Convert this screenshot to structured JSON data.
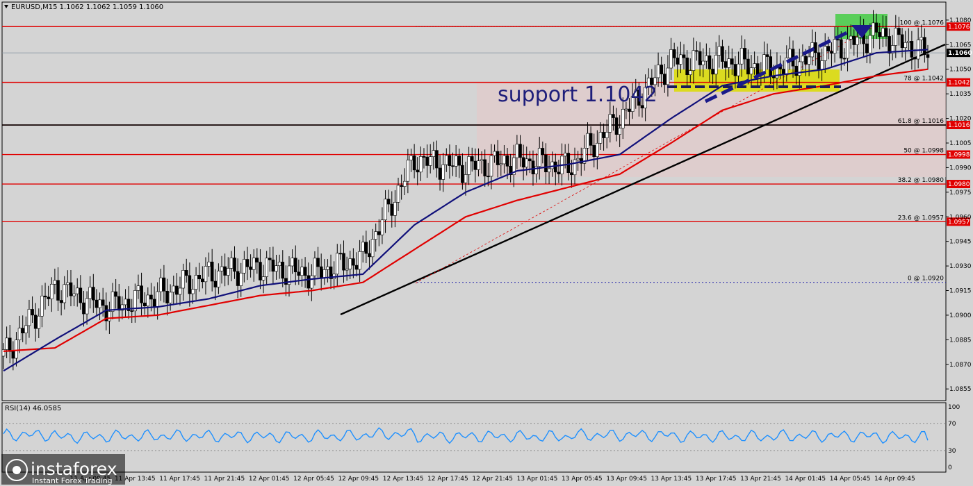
{
  "header": {
    "symbol_info": "EURUSD,M15  1.1062 1.1062 1.1059 1.1060"
  },
  "annotation": {
    "support_text": "support 1.1042"
  },
  "rsi": {
    "label": "RSI(14) 46.0585",
    "levels": [
      "100",
      "70",
      "30",
      "0"
    ]
  },
  "watermark": {
    "brand": "instaforex",
    "tagline": "Instant Forex Trading"
  },
  "price_axis": [
    "1.1080",
    "1.1065",
    "1.1050",
    "1.1035",
    "1.1020",
    "1.1005",
    "1.0990",
    "1.0975",
    "1.0960",
    "1.0945",
    "1.0930",
    "1.0915",
    "1.0900",
    "1.0885",
    "1.0870",
    "1.0855"
  ],
  "time_axis": [
    "11 Apr 09:45",
    "11 Apr 13:45",
    "11 Apr 17:45",
    "11 Apr 21:45",
    "12 Apr 01:45",
    "12 Apr 05:45",
    "12 Apr 09:45",
    "12 Apr 13:45",
    "12 Apr 17:45",
    "12 Apr 21:45",
    "13 Apr 01:45",
    "13 Apr 05:45",
    "13 Apr 09:45",
    "13 Apr 13:45",
    "13 Apr 17:45",
    "13 Apr 21:45",
    "14 Apr 01:45",
    "14 Apr 05:45",
    "14 Apr 09:45"
  ],
  "fib_levels": [
    {
      "ratio": "100 @ 1.1076",
      "price": 1.1076,
      "tag": "1.1076"
    },
    {
      "ratio": "78 @ 1.1042",
      "price": 1.1042,
      "tag": "1.1042"
    },
    {
      "ratio": "61.8 @ 1.1016",
      "price": 1.1016,
      "tag": "1.1016"
    },
    {
      "ratio": "50 @ 1.0998",
      "price": 1.0998,
      "tag": "1.0998"
    },
    {
      "ratio": "38.2 @ 1.0980",
      "price": 1.098,
      "tag": "1.0980"
    },
    {
      "ratio": "23.6 @ 1.0957",
      "price": 1.0957,
      "tag": "1.0957"
    },
    {
      "ratio": "0 @ 1.0920",
      "price": 1.092,
      "tag": ""
    }
  ],
  "current_price": "1.1060",
  "colors": {
    "background": "#d4d4d4",
    "level_line": "#e00000",
    "ma_fast": "#10107a",
    "ma_slow": "#e00000",
    "rsi_line": "#1e90ff",
    "support_zone": "#dcdc00",
    "top_zone": "#44cc44",
    "arrow": "#1a1a8a"
  },
  "chart_data": {
    "type": "line",
    "title": "EURUSD,M15",
    "ylim": [
      1.085,
      1.1088
    ],
    "x": [
      "11 Apr 09:45",
      "11 Apr 13:45",
      "11 Apr 17:45",
      "11 Apr 21:45",
      "12 Apr 01:45",
      "12 Apr 05:45",
      "12 Apr 09:45",
      "12 Apr 13:45",
      "12 Apr 17:45",
      "12 Apr 21:45",
      "13 Apr 01:45",
      "13 Apr 05:45",
      "13 Apr 09:45",
      "13 Apr 13:45",
      "13 Apr 17:45",
      "13 Apr 21:45",
      "14 Apr 01:45",
      "14 Apr 05:45",
      "14 Apr 09:45"
    ],
    "series": [
      {
        "values": [
          1.0875,
          1.0917,
          1.0905,
          1.0912,
          1.0925,
          1.093,
          1.0925,
          1.0935,
          1.0995,
          1.099,
          1.0995,
          1.099,
          1.102,
          1.1055,
          1.1055,
          1.105,
          1.106,
          1.1072,
          1.106
        ]
      },
      {
        "values": [
          1.0866,
          1.0885,
          1.0903,
          1.0905,
          1.091,
          1.0918,
          1.0922,
          1.0925,
          1.0955,
          1.0975,
          1.0988,
          1.0992,
          1.0998,
          1.102,
          1.104,
          1.1046,
          1.105,
          1.106,
          1.1062
        ]
      },
      {
        "values": [
          1.0878,
          1.088,
          1.0898,
          1.09,
          1.0906,
          1.0912,
          1.0915,
          1.092,
          1.094,
          1.096,
          1.097,
          1.0978,
          1.0986,
          1.1005,
          1.1025,
          1.1035,
          1.104,
          1.1046,
          1.105
        ]
      }
    ]
  }
}
